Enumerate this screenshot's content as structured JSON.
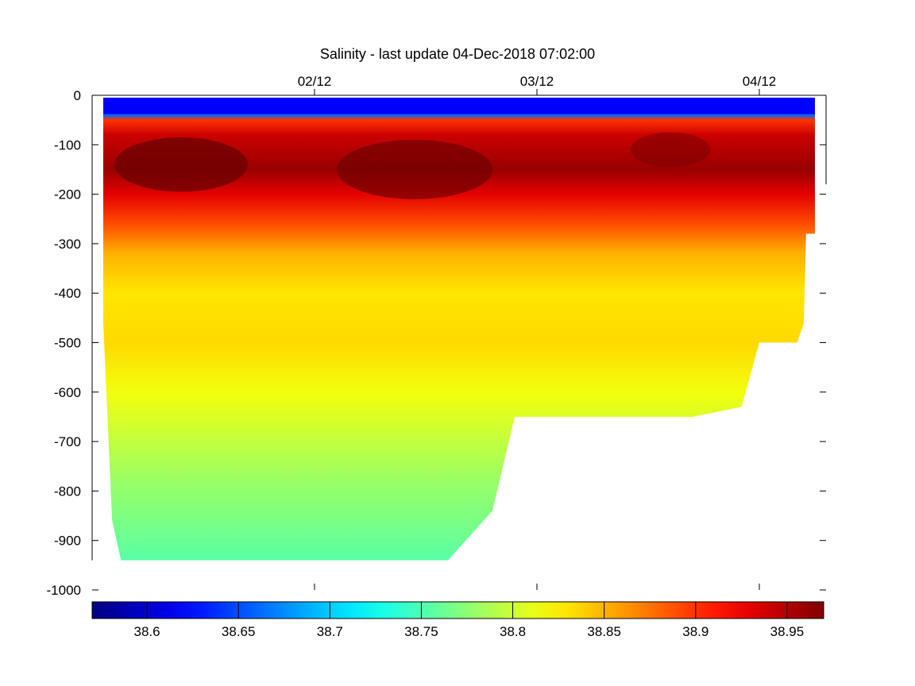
{
  "chart_data": {
    "type": "heatmap",
    "title": "Salinity - last update 04-Dec-2018 07:02:00",
    "xlabel": "",
    "ylabel": "",
    "x_ticks": [
      {
        "label": "02/12",
        "value": 3.0
      },
      {
        "label": "03/12",
        "value": 4.0
      },
      {
        "label": "04/12",
        "value": 5.0
      }
    ],
    "xlim": [
      2.0,
      5.3
    ],
    "y_ticks": [
      0,
      -100,
      -200,
      -300,
      -400,
      -500,
      -600,
      -700,
      -800,
      -900,
      -1000
    ],
    "ylim": [
      -1000,
      0
    ],
    "colorbar": {
      "range": [
        38.57,
        38.97
      ],
      "tick_values": [
        38.6,
        38.65,
        38.7,
        38.75,
        38.8,
        38.85,
        38.9,
        38.95
      ],
      "tick_labels": [
        "38.6",
        "38.65",
        "38.7",
        "38.75",
        "38.8",
        "38.85",
        "38.9",
        "38.95"
      ],
      "colormap": "jet"
    },
    "profile": [
      {
        "depth": -5,
        "salinity": 38.63
      },
      {
        "depth": -25,
        "salinity": 38.62
      },
      {
        "depth": -40,
        "salinity": 38.66
      },
      {
        "depth": -50,
        "salinity": 38.9
      },
      {
        "depth": -80,
        "salinity": 38.94
      },
      {
        "depth": -150,
        "salinity": 38.96
      },
      {
        "depth": -200,
        "salinity": 38.93
      },
      {
        "depth": -260,
        "salinity": 38.89
      },
      {
        "depth": -320,
        "salinity": 38.85
      },
      {
        "depth": -400,
        "salinity": 38.83
      },
      {
        "depth": -500,
        "salinity": 38.835
      },
      {
        "depth": -600,
        "salinity": 38.815
      },
      {
        "depth": -680,
        "salinity": 38.8
      },
      {
        "depth": -780,
        "salinity": 38.78
      },
      {
        "depth": -880,
        "salinity": 38.765
      },
      {
        "depth": -940,
        "salinity": 38.755
      }
    ],
    "data_extent": [
      {
        "x": 2.05,
        "depth": -460
      },
      {
        "x": 2.09,
        "depth": -860
      },
      {
        "x": 2.13,
        "depth": -940
      },
      {
        "x": 3.6,
        "depth": -940
      },
      {
        "x": 3.8,
        "depth": -840
      },
      {
        "x": 3.9,
        "depth": -650
      },
      {
        "x": 4.7,
        "depth": -650
      },
      {
        "x": 4.92,
        "depth": -630
      },
      {
        "x": 5.0,
        "depth": -500
      },
      {
        "x": 5.17,
        "depth": -500
      },
      {
        "x": 5.2,
        "depth": -460
      },
      {
        "x": 5.21,
        "depth": -280
      },
      {
        "x": 5.25,
        "depth": -280
      },
      {
        "x": 5.25,
        "depth": -5
      },
      {
        "x": 2.05,
        "depth": -5
      }
    ]
  }
}
